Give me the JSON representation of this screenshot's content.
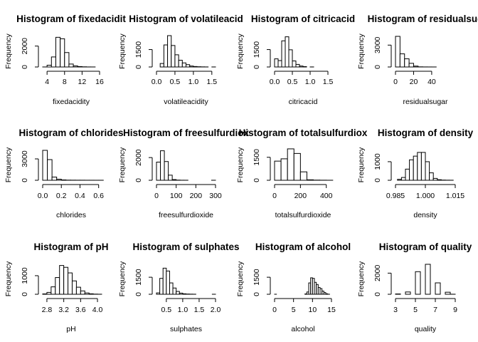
{
  "chart_data": [
    {
      "type": "bar",
      "title": "Histogram of fixedacidit",
      "xlabel": "fixedacidity",
      "ylabel": "Frequency",
      "xlim": [
        3,
        16
      ],
      "ylim": [
        0,
        3000
      ],
      "xticks": [
        4,
        8,
        12,
        16
      ],
      "yticks": [
        0,
        2000
      ],
      "bin_width": 1,
      "bins": [
        3,
        4,
        5,
        6,
        7,
        8,
        9,
        10,
        11,
        12,
        13,
        14
      ],
      "values": [
        3,
        170,
        960,
        2840,
        2700,
        1380,
        280,
        100,
        40,
        15,
        5,
        3
      ]
    },
    {
      "type": "bar",
      "title": "Histogram of volatileacid",
      "xlabel": "volatileacidity",
      "ylabel": "Frequency",
      "xlim": [
        0,
        1.6
      ],
      "ylim": [
        0,
        2700
      ],
      "xticks": [
        0,
        0.5,
        1,
        1.5
      ],
      "xtick_labels": [
        "0.0",
        "0.5",
        "1.0",
        "1.5"
      ],
      "yticks": [
        0,
        1500
      ],
      "bin_width": 0.1,
      "bins": [
        0.1,
        0.2,
        0.3,
        0.4,
        0.5,
        0.6,
        0.7,
        0.8,
        0.9,
        1.0,
        1.1,
        1.2,
        1.3,
        1.5
      ],
      "values": [
        300,
        1900,
        2700,
        1850,
        1050,
        580,
        350,
        200,
        80,
        40,
        20,
        10,
        5,
        3
      ]
    },
    {
      "type": "bar",
      "title": "Histogram of citricacid",
      "xlabel": "citricacid",
      "ylabel": "Frequency",
      "xlim": [
        0,
        1.6
      ],
      "ylim": [
        0,
        2700
      ],
      "xticks": [
        0,
        0.5,
        1,
        1.5
      ],
      "xtick_labels": [
        "0.0",
        "0.5",
        "1.0",
        "1.5"
      ],
      "yticks": [
        0,
        1500
      ],
      "bin_width": 0.1,
      "bins": [
        0,
        0.1,
        0.2,
        0.3,
        0.4,
        0.5,
        0.6,
        0.7,
        0.8,
        1.0
      ],
      "values": [
        700,
        550,
        2250,
        2600,
        1480,
        520,
        220,
        80,
        30,
        5
      ]
    },
    {
      "type": "bar",
      "title": "Histogram of residualsug",
      "xlabel": "residualsugar",
      "ylabel": "Frequency",
      "xlim": [
        0,
        66
      ],
      "ylim": [
        0,
        4300
      ],
      "xticks": [
        0,
        20,
        40
      ],
      "yticks": [
        0,
        3000
      ],
      "bin_width": 5,
      "bins": [
        0,
        5,
        10,
        15,
        20,
        25,
        30,
        35,
        40
      ],
      "values": [
        4200,
        1800,
        1120,
        500,
        120,
        20,
        8,
        5,
        2
      ]
    },
    {
      "type": "bar",
      "title": "Histogram of chlorides",
      "xlabel": "chlorides",
      "ylabel": "Frequency",
      "xlim": [
        0,
        0.61
      ],
      "ylim": [
        0,
        4300
      ],
      "xticks": [
        0,
        0.2,
        0.4,
        0.6
      ],
      "xtick_labels": [
        "0.0",
        "0.2",
        "0.4",
        "0.6"
      ],
      "yticks": [
        0,
        3000
      ],
      "bin_width": 0.05,
      "bins": [
        0,
        0.05,
        0.1,
        0.15,
        0.2,
        0.25,
        0.3,
        0.35,
        0.4,
        0.45,
        0.5,
        0.55,
        0.6
      ],
      "values": [
        4200,
        2900,
        450,
        150,
        50,
        20,
        15,
        10,
        10,
        5,
        5,
        3,
        3
      ]
    },
    {
      "type": "bar",
      "title": "Histogram of freesulfurdiox",
      "xlabel": "freesulfurdioxide",
      "ylabel": "Frequency",
      "xlim": [
        0,
        300
      ],
      "ylim": [
        0,
        2700
      ],
      "xticks": [
        0,
        100,
        200,
        300
      ],
      "yticks": [
        0,
        2000
      ],
      "bin_width": 20,
      "bins": [
        0,
        20,
        40,
        60,
        80,
        100,
        120,
        140,
        280
      ],
      "values": [
        1600,
        2600,
        1650,
        450,
        60,
        15,
        5,
        3,
        2
      ]
    },
    {
      "type": "bar",
      "title": "Histogram of totalsulfurdiox",
      "xlabel": "totalsulfurdioxide",
      "ylabel": "Frequency",
      "xlim": [
        0,
        440
      ],
      "ylim": [
        0,
        2000
      ],
      "xticks": [
        0,
        200,
        400
      ],
      "yticks": [
        0,
        1500
      ],
      "bin_width": 50,
      "bins": [
        0,
        50,
        100,
        150,
        200,
        250,
        300,
        350,
        400
      ],
      "values": [
        1250,
        1400,
        2050,
        1750,
        550,
        30,
        10,
        5,
        2
      ]
    },
    {
      "type": "bar",
      "title": "Histogram of density",
      "xlabel": "density",
      "ylabel": "Frequency",
      "xlim": [
        0.985,
        1.015
      ],
      "ylim": [
        0,
        1650
      ],
      "xticks": [
        0.985,
        1.0,
        1.015
      ],
      "xtick_labels": [
        "0.985",
        "1.000",
        "1.015"
      ],
      "yticks": [
        0,
        1000
      ],
      "bin_width": 0.002,
      "bins": [
        0.986,
        0.988,
        0.99,
        0.992,
        0.994,
        0.996,
        0.998,
        1.0,
        1.002,
        1.004,
        1.006,
        1.008,
        1.01,
        1.012
      ],
      "values": [
        50,
        150,
        600,
        1100,
        1300,
        1500,
        1500,
        1000,
        400,
        100,
        30,
        10,
        5,
        3
      ]
    },
    {
      "type": "bar",
      "title": "Histogram of pH",
      "xlabel": "pH",
      "ylabel": "Frequency",
      "xlim": [
        2.7,
        4.05
      ],
      "ylim": [
        0,
        1650
      ],
      "xticks": [
        2.8,
        3.2,
        3.6,
        4.0
      ],
      "xtick_labels": [
        "2.8",
        "3.2",
        "3.6",
        "4.0"
      ],
      "yticks": [
        0,
        1000
      ],
      "bin_width": 0.1,
      "bins": [
        2.7,
        2.8,
        2.9,
        3.0,
        3.1,
        3.2,
        3.3,
        3.4,
        3.5,
        3.6,
        3.7,
        3.8,
        3.9,
        4.0
      ],
      "values": [
        20,
        100,
        400,
        900,
        1550,
        1450,
        1150,
        720,
        380,
        180,
        70,
        25,
        8,
        3
      ]
    },
    {
      "type": "bar",
      "title": "Histogram of sulphates",
      "xlabel": "sulphates",
      "ylabel": "Frequency",
      "xlim": [
        0.2,
        2.0
      ],
      "ylim": [
        0,
        2700
      ],
      "xticks": [
        0.5,
        1,
        1.5,
        2
      ],
      "xtick_labels": [
        "0.5",
        "1.0",
        "1.5",
        "2.0"
      ],
      "yticks": [
        0,
        1500
      ],
      "bin_width": 0.1,
      "bins": [
        0.2,
        0.3,
        0.4,
        0.5,
        0.6,
        0.7,
        0.8,
        0.9,
        1.0,
        1.1,
        1.2,
        1.3,
        1.9
      ],
      "values": [
        120,
        1400,
        2300,
        2050,
        1000,
        550,
        250,
        100,
        40,
        20,
        10,
        5,
        2
      ]
    },
    {
      "type": "bar",
      "title": "Histogram of alcohol",
      "xlabel": "alcohol",
      "ylabel": "Frequency",
      "xlim": [
        0,
        15
      ],
      "ylim": [
        0,
        2700
      ],
      "xticks": [
        0,
        5,
        10,
        15
      ],
      "yticks": [
        0,
        1500
      ],
      "bin_width": 0.5,
      "bins": [
        0,
        8,
        8.5,
        9,
        9.5,
        10,
        10.5,
        11,
        11.5,
        12,
        12.5,
        13,
        13.5,
        14
      ],
      "values": [
        2,
        30,
        200,
        1000,
        1450,
        1400,
        1050,
        860,
        600,
        500,
        280,
        150,
        40,
        5
      ]
    },
    {
      "type": "bar",
      "title": "Histogram of quality",
      "xlabel": "quality",
      "ylabel": "Frequency",
      "xlim": [
        3,
        9
      ],
      "ylim": [
        0,
        2900
      ],
      "xticks": [
        3,
        5,
        7,
        9
      ],
      "yticks": [
        0,
        2000
      ],
      "bin_width": 0.5,
      "bins": [
        3,
        3.5,
        4,
        4.5,
        5,
        5.5,
        6,
        6.5,
        7,
        7.5,
        8,
        8.5
      ],
      "values": [
        30,
        0,
        216,
        0,
        2138,
        0,
        2836,
        0,
        1079,
        0,
        193,
        5
      ]
    }
  ]
}
